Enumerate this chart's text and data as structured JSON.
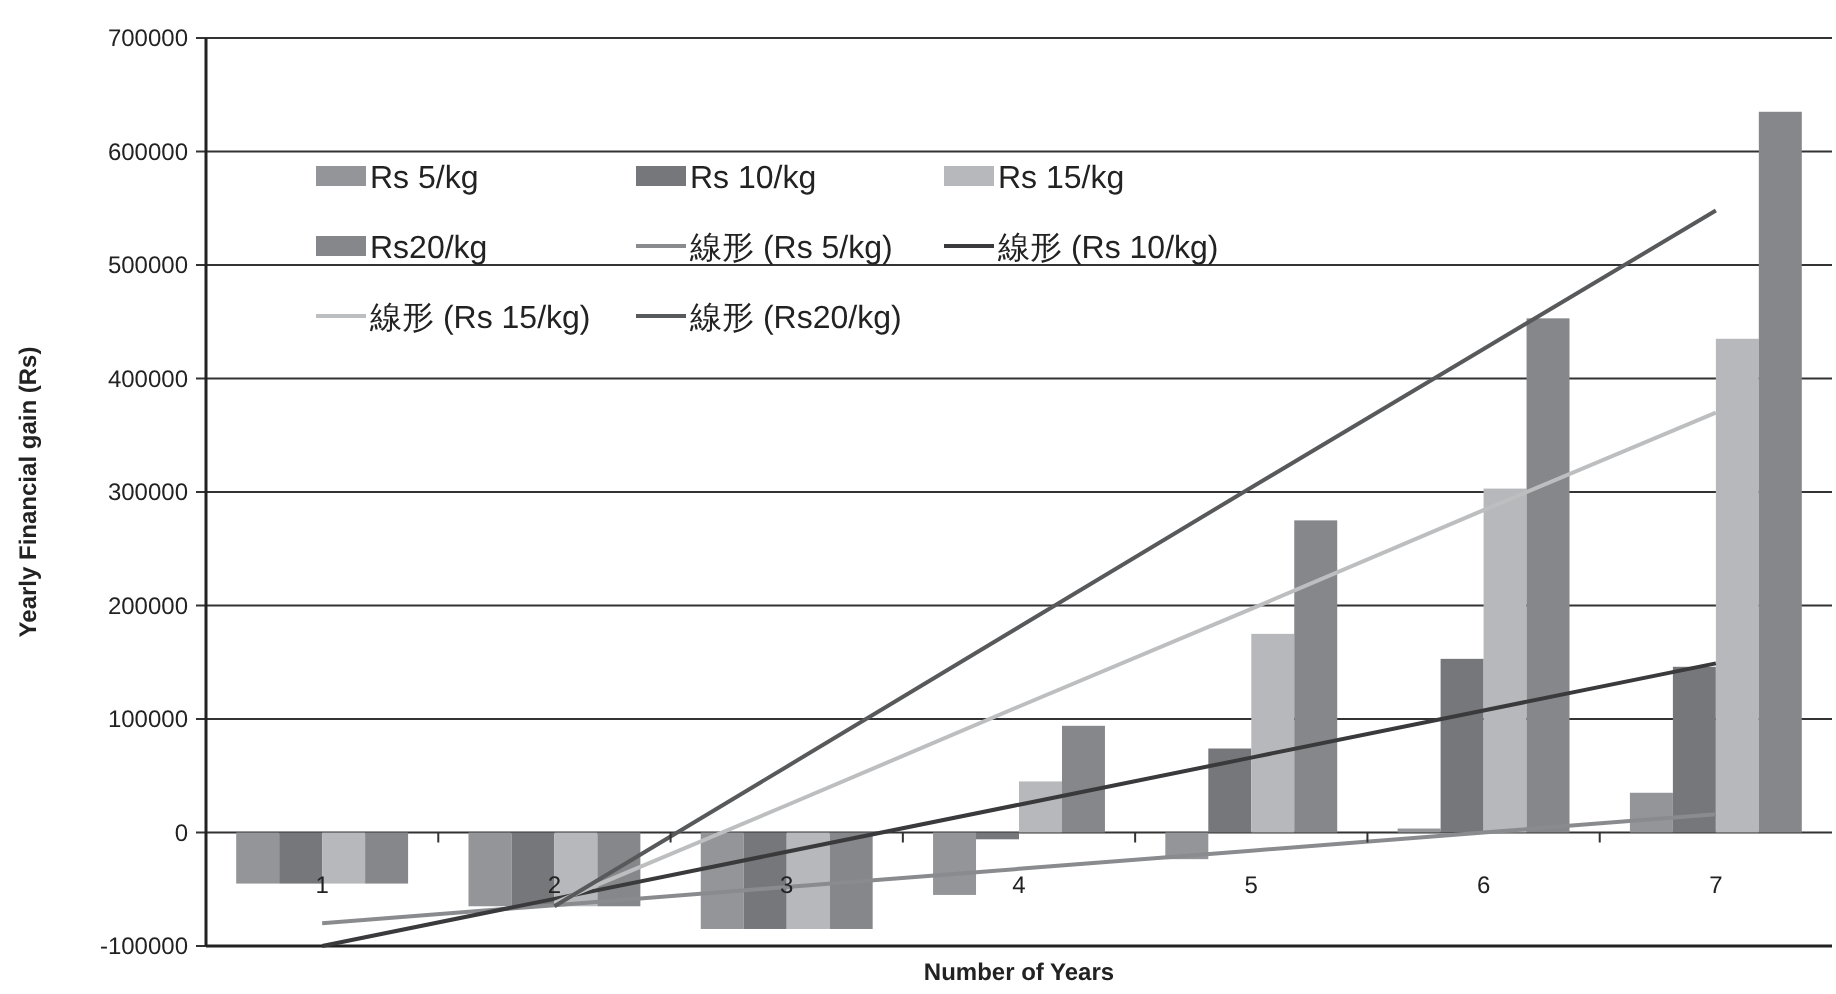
{
  "chart_data": {
    "type": "bar",
    "xlabel": "Number of Years",
    "ylabel": "Yearly Financial gain (Rs)",
    "categories": [
      "1",
      "2",
      "3",
      "4",
      "5",
      "6",
      "7"
    ],
    "series": [
      {
        "name": "Rs 5/kg",
        "color": "#939598",
        "values": [
          -45000,
          -65000,
          -85000,
          -55000,
          -23500,
          3500,
          35000
        ]
      },
      {
        "name": "Rs 10/kg",
        "color": "#76777b",
        "values": [
          -45000,
          -65000,
          -85000,
          -6000,
          74000,
          153000,
          146000
        ]
      },
      {
        "name": "Rs 15/kg",
        "color": "#b7b8bb",
        "values": [
          -45000,
          -65000,
          -85000,
          45000,
          175000,
          303000,
          435000
        ]
      },
      {
        "name": "Rs20/kg",
        "color": "#86878b",
        "values": [
          -45000,
          -65000,
          -85000,
          94000,
          275000,
          453000,
          635000
        ]
      },
      {
        "name": "線形 (Rs 5/kg)",
        "type": "line",
        "color": "#8a8b8e",
        "values": [
          -80000,
          -64000,
          -48000,
          -32000,
          -16000,
          0,
          16000
        ]
      },
      {
        "name": "線形 (Rs 10/kg)",
        "type": "line",
        "color": "#3a3a3c",
        "values": [
          -100000,
          -58500,
          -17000,
          24500,
          66000,
          107500,
          149000
        ]
      },
      {
        "name": "線形 (Rs 15/kg)",
        "type": "line",
        "color": "#bdbec0",
        "values": [
          null,
          -62000,
          24000,
          111000,
          197000,
          284000,
          370000
        ]
      },
      {
        "name": "線形 (Rs20/kg)",
        "type": "line",
        "color": "#58595b",
        "values": [
          null,
          -65000,
          58000,
          181000,
          304000,
          426000,
          548000
        ]
      }
    ],
    "ylim": [
      -100000,
      700000
    ],
    "yticks": [
      -100000,
      0,
      100000,
      200000,
      300000,
      400000,
      500000,
      600000,
      700000
    ],
    "grid": "y",
    "legend": "top left"
  }
}
